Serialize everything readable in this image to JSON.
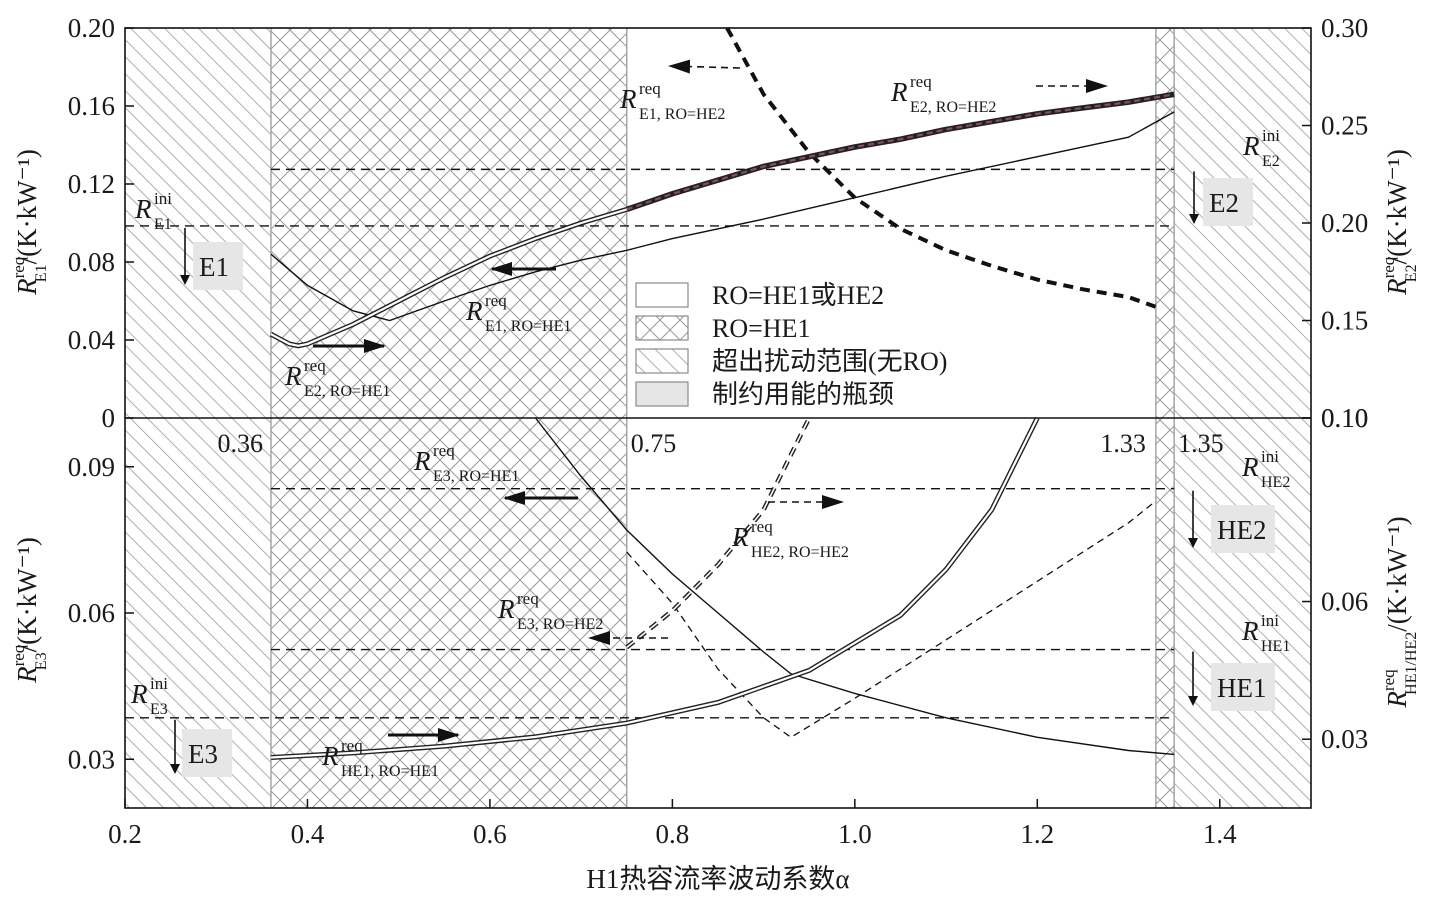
{
  "chart_data": {
    "type": "line",
    "x_axis": {
      "title": "H1热容流率波动系数α",
      "range": [
        0.2,
        1.5
      ],
      "ticks": [
        "0.2",
        "0.4",
        "0.6",
        "0.8",
        "1.0",
        "1.2",
        "1.4"
      ],
      "tick_values": [
        0.2,
        0.4,
        0.6,
        0.8,
        1.0,
        1.2,
        1.4
      ]
    },
    "boundaries": [
      {
        "alpha": 0.36,
        "label": "0.36"
      },
      {
        "alpha": 0.75,
        "label": "0.75"
      },
      {
        "alpha": 1.33,
        "label": "1.33"
      },
      {
        "alpha": 1.35,
        "label": "1.35"
      }
    ],
    "regions": [
      {
        "name": "超出扰动范围(无RO)",
        "from": 0.2,
        "to": 0.36,
        "pattern": "diagonal"
      },
      {
        "name": "RO=HE1",
        "from": 0.36,
        "to": 0.75,
        "pattern": "crosshatch"
      },
      {
        "name": "RO=HE1或HE2",
        "from": 0.75,
        "to": 1.33,
        "pattern": "none"
      },
      {
        "name": "RO=HE1",
        "from": 1.33,
        "to": 1.35,
        "pattern": "crosshatch"
      },
      {
        "name": "超出扰动范围(无RO)",
        "from": 1.35,
        "to": 1.5,
        "pattern": "diagonal"
      }
    ],
    "top_panel": {
      "left_axis": {
        "title_main": "R",
        "title_sup": "req",
        "title_sub": "E1",
        "title_unit": "/(K·kW⁻¹)",
        "range": [
          0,
          0.2
        ],
        "ticks": [
          "0",
          "0.04",
          "0.08",
          "0.12",
          "0.16",
          "0.20"
        ],
        "tick_values": [
          0,
          0.04,
          0.08,
          0.12,
          0.16,
          0.2
        ]
      },
      "right_axis": {
        "title_main": "R",
        "title_sup": "req",
        "title_sub": "E2",
        "title_unit": "/(K·kW⁻¹)",
        "range": [
          0.1,
          0.3
        ],
        "ticks": [
          "0.10",
          "0.15",
          "0.20",
          "0.25",
          "0.30"
        ],
        "tick_values": [
          0.1,
          0.15,
          0.2,
          0.25,
          0.3
        ]
      },
      "reference_lines": [
        {
          "name": "R_E1_ini",
          "axis": "left",
          "value": 0.0985
        },
        {
          "name": "R_E2_ini",
          "axis": "right",
          "value": 0.2275
        }
      ],
      "series": [
        {
          "name": "R_E1,RO=HE1",
          "axis": "left",
          "style": "solid-thin",
          "x": [
            0.36,
            0.4,
            0.45,
            0.49,
            0.55,
            0.6,
            0.65,
            0.7,
            0.75,
            0.8,
            0.9,
            1.0,
            1.1,
            1.2,
            1.3,
            1.35
          ],
          "y": [
            0.084,
            0.068,
            0.055,
            0.05,
            0.06,
            0.068,
            0.075,
            0.081,
            0.086,
            0.092,
            0.102,
            0.113,
            0.124,
            0.134,
            0.144,
            0.157
          ]
        },
        {
          "name": "R_E1,RO=HE2",
          "axis": "left",
          "style": "dashed-thick",
          "x": [
            0.86,
            0.9,
            0.95,
            1.0,
            1.05,
            1.1,
            1.15,
            1.2,
            1.25,
            1.3,
            1.33
          ],
          "y": [
            0.2,
            0.166,
            0.136,
            0.113,
            0.097,
            0.086,
            0.078,
            0.071,
            0.066,
            0.062,
            0.057
          ]
        },
        {
          "name": "R_E2,RO=HE1",
          "axis": "right",
          "style": "double",
          "x": [
            0.36,
            0.38,
            0.39,
            0.4,
            0.45,
            0.5,
            0.55,
            0.6,
            0.65,
            0.7,
            0.75
          ],
          "y": [
            0.143,
            0.138,
            0.137,
            0.138,
            0.148,
            0.16,
            0.172,
            0.183,
            0.192,
            0.2,
            0.207
          ]
        },
        {
          "name": "R_E2,RO=HE2",
          "axis": "right",
          "style": "double-dark",
          "x": [
            0.75,
            0.8,
            0.85,
            0.9,
            0.95,
            1.0,
            1.05,
            1.1,
            1.15,
            1.2,
            1.25,
            1.3,
            1.35
          ],
          "y": [
            0.207,
            0.215,
            0.222,
            0.229,
            0.234,
            0.239,
            0.243,
            0.248,
            0.252,
            0.256,
            0.259,
            0.262,
            0.266
          ]
        }
      ],
      "bottleneck_labels": [
        "E1",
        "E2"
      ]
    },
    "bottom_panel": {
      "left_axis": {
        "title_main": "R",
        "title_sup": "req",
        "title_sub": "E3",
        "title_unit": "/(K·kW⁻¹)",
        "range": [
          0.02,
          0.1
        ],
        "ticks": [
          "0.03",
          "0.06",
          "0.09"
        ],
        "tick_values": [
          0.03,
          0.06,
          0.09
        ]
      },
      "right_axis": {
        "title_main": "R",
        "title_sup": "req",
        "title_sub": "HE1/HE2",
        "title_unit": "/(K·kW⁻¹)",
        "range": [
          0.015,
          0.1
        ],
        "ticks": [
          "0.03",
          "0.06",
          "0.10"
        ],
        "tick_values": [
          0.03,
          0.06,
          0.1
        ]
      },
      "reference_lines": [
        {
          "name": "R_E3_ini",
          "axis": "left",
          "value": 0.0385
        },
        {
          "name": "R_HE2_ini",
          "axis": "left",
          "value": 0.0855
        },
        {
          "name": "R_HE1_ini",
          "axis": "left",
          "value": 0.0525
        }
      ],
      "series": [
        {
          "name": "R_E3,RO=HE1",
          "axis": "left",
          "style": "solid-thin",
          "x": [
            0.65,
            0.7,
            0.75,
            0.8,
            0.85,
            0.9,
            0.93,
            1.0,
            1.1,
            1.2,
            1.3,
            1.35
          ],
          "y": [
            0.1,
            0.088,
            0.077,
            0.068,
            0.06,
            0.052,
            0.0475,
            0.0435,
            0.0385,
            0.0345,
            0.0318,
            0.031
          ]
        },
        {
          "name": "R_E3,RO=HE2",
          "axis": "left",
          "style": "dashed-thin",
          "x": [
            0.75,
            0.8,
            0.85,
            0.9,
            0.93,
            1.0,
            1.1,
            1.2,
            1.3,
            1.33
          ],
          "y": [
            0.0725,
            0.062,
            0.0485,
            0.0385,
            0.0345,
            0.0425,
            0.0545,
            0.0665,
            0.0785,
            0.083
          ]
        },
        {
          "name": "R_HE1,RO=HE1",
          "axis": "right",
          "style": "double",
          "x": [
            0.36,
            0.45,
            0.55,
            0.65,
            0.75,
            0.85,
            0.95,
            1.05,
            1.1,
            1.15,
            1.2
          ],
          "y": [
            0.026,
            0.027,
            0.0285,
            0.0305,
            0.0335,
            0.038,
            0.045,
            0.057,
            0.067,
            0.08,
            0.1
          ]
        },
        {
          "name": "R_HE2,RO=HE2",
          "axis": "right",
          "style": "dashed-double",
          "x": [
            0.75,
            0.8,
            0.85,
            0.9,
            0.95
          ],
          "y": [
            0.05,
            0.058,
            0.068,
            0.08,
            0.1
          ]
        }
      ],
      "bottleneck_labels": [
        "E3",
        "HE2",
        "HE1"
      ]
    },
    "legend": [
      {
        "label": "RO=HE1或HE2",
        "pattern": "none"
      },
      {
        "label": "RO=HE1",
        "pattern": "crosshatch"
      },
      {
        "label": "超出扰动范围(无RO)",
        "pattern": "diagonal"
      },
      {
        "label": "制约用能的瓶颈",
        "pattern": "gray"
      }
    ],
    "annotations": [
      {
        "main": "R",
        "sup": "req",
        "sub": "E1, RO=HE2"
      },
      {
        "main": "R",
        "sup": "req",
        "sub": "E2, RO=HE2"
      },
      {
        "main": "R",
        "sup": "ini",
        "sub": "E1"
      },
      {
        "main": "R",
        "sup": "ini",
        "sub": "E2"
      },
      {
        "main": "R",
        "sup": "req",
        "sub": "E1, RO=HE1"
      },
      {
        "main": "R",
        "sup": "req",
        "sub": "E2, RO=HE1"
      },
      {
        "main": "R",
        "sup": "req",
        "sub": "E3, RO=HE1"
      },
      {
        "main": "R",
        "sup": "req",
        "sub": "HE2, RO=HE2"
      },
      {
        "main": "R",
        "sup": "req",
        "sub": "E3, RO=HE2"
      },
      {
        "main": "R",
        "sup": "ini",
        "sub": "HE2"
      },
      {
        "main": "R",
        "sup": "ini",
        "sub": "HE1"
      },
      {
        "main": "R",
        "sup": "ini",
        "sub": "E3"
      },
      {
        "main": "R",
        "sup": "req",
        "sub": "HE1, RO=HE1"
      }
    ]
  }
}
